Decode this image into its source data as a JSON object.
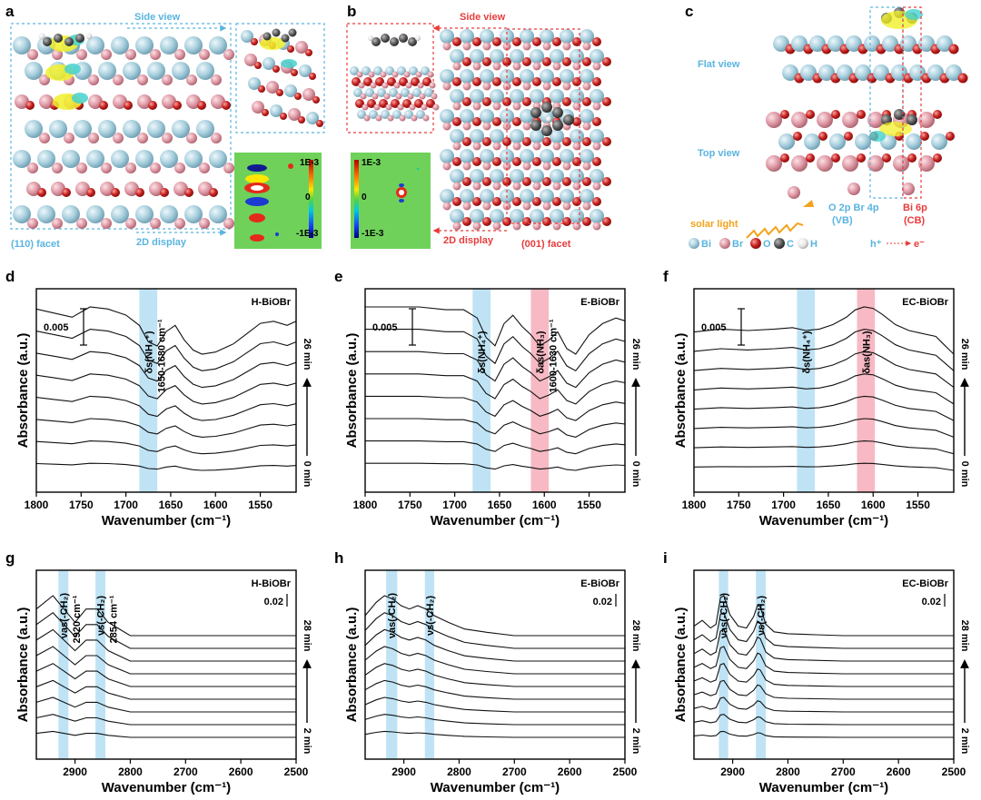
{
  "panel_letters": [
    "a",
    "b",
    "c",
    "d",
    "e",
    "f",
    "g",
    "h",
    "i"
  ],
  "colors": {
    "cyan_text": "#5ab4e0",
    "red_text": "#e83c3c",
    "orange_text": "#f2a31b",
    "blue_band": "#bfe3f5",
    "pink_band": "#f7b9c4",
    "bi_atom": "#a9d0de",
    "br_atom": "#df9aa6",
    "o_atom": "#c8201e",
    "c_atom": "#555555",
    "h_atom": "#f2f2f2"
  },
  "panel_a": {
    "side_view": "Side view",
    "facet": "(110) facet",
    "display": "2D display",
    "cbar_top": "1E-3",
    "cbar_mid": "0",
    "cbar_bot": "-1E-3"
  },
  "panel_b": {
    "side_view": "Side view",
    "facet": "(001) facet",
    "display": "2D display",
    "cbar_top": "1E-3",
    "cbar_mid": "0",
    "cbar_bot": "-1E-3"
  },
  "panel_c": {
    "flat_view": "Flat view",
    "top_view": "Top view",
    "vb": "O 2p Br 4p",
    "vb_sub": "(VB)",
    "cb": "Bi 6p",
    "cb_sub": "(CB)",
    "solar": "solar light",
    "hole": "h⁺",
    "electron": "e⁻",
    "legend": [
      "Bi",
      "Br",
      "O",
      "C",
      "H"
    ]
  },
  "chart_data": [
    {
      "panel": "d",
      "type": "line",
      "sample": "H-BiOBr",
      "xlabel": "Wavenumber (cm⁻¹)",
      "ylabel": "Absorbance (a.u.)",
      "xlim": [
        1800,
        1510
      ],
      "xticks": [
        1800,
        1750,
        1700,
        1650,
        1600,
        1550
      ],
      "scale_bar": "0.005",
      "time_top": "26 min",
      "time_bottom": "0 min",
      "n_spectra": 8,
      "bands": [
        {
          "from": 1685,
          "to": 1665,
          "color": "blue",
          "label": "δs(NH₄⁺)",
          "range_label": "1650-1680 cm⁻¹"
        }
      ],
      "top_spectrum": {
        "x": [
          1800,
          1780,
          1760,
          1740,
          1720,
          1700,
          1685,
          1675,
          1665,
          1655,
          1645,
          1635,
          1625,
          1615,
          1600,
          1580,
          1565,
          1550,
          1535,
          1520,
          1510
        ],
        "y": [
          0.03,
          0.028,
          0.026,
          0.031,
          0.03,
          0.027,
          0.022,
          0.014,
          0.012,
          0.019,
          0.022,
          0.015,
          0.01,
          0.008,
          0.009,
          0.013,
          0.018,
          0.023,
          0.024,
          0.022,
          0.024
        ]
      }
    },
    {
      "panel": "e",
      "type": "line",
      "sample": "E-BiOBr",
      "xlabel": "Wavenumber (cm⁻¹)",
      "ylabel": "Absorbance (a.u.)",
      "xlim": [
        1800,
        1510
      ],
      "xticks": [
        1800,
        1750,
        1700,
        1650,
        1600,
        1550
      ],
      "scale_bar": "0.005",
      "time_top": "26 min",
      "time_bottom": "0 min",
      "n_spectra": 8,
      "bands": [
        {
          "from": 1680,
          "to": 1660,
          "color": "blue",
          "label": "δs(NH₄⁺)",
          "range_label": ""
        },
        {
          "from": 1615,
          "to": 1595,
          "color": "pink",
          "label": "δas(NH₃)",
          "range_label": "1600-1630 cm⁻¹"
        }
      ],
      "top_spectrum": {
        "x": [
          1800,
          1770,
          1740,
          1710,
          1690,
          1675,
          1665,
          1655,
          1645,
          1635,
          1625,
          1615,
          1605,
          1595,
          1585,
          1575,
          1565,
          1550,
          1535,
          1520,
          1510
        ],
        "y": [
          0.03,
          0.03,
          0.03,
          0.029,
          0.029,
          0.026,
          0.019,
          0.016,
          0.024,
          0.027,
          0.023,
          0.02,
          0.016,
          0.018,
          0.021,
          0.015,
          0.013,
          0.02,
          0.024,
          0.026,
          0.025
        ]
      }
    },
    {
      "panel": "f",
      "type": "line",
      "sample": "EC-BiOBr",
      "xlabel": "Wavenumber (cm⁻¹)",
      "ylabel": "Absorbance (a.u.)",
      "xlim": [
        1800,
        1510
      ],
      "xticks": [
        1800,
        1750,
        1700,
        1650,
        1600,
        1550
      ],
      "scale_bar": "0.005",
      "time_top": "26 min",
      "time_bottom": "0 min",
      "n_spectra": 8,
      "bands": [
        {
          "from": 1685,
          "to": 1665,
          "color": "blue",
          "label": "δs(NH₄⁺)",
          "range_label": ""
        },
        {
          "from": 1618,
          "to": 1598,
          "color": "pink",
          "label": "δas(NH₃)",
          "range_label": ""
        }
      ],
      "top_spectrum": {
        "x": [
          1800,
          1770,
          1740,
          1710,
          1690,
          1675,
          1660,
          1645,
          1630,
          1620,
          1610,
          1600,
          1590,
          1575,
          1560,
          1545,
          1530,
          1520,
          1510
        ],
        "y": [
          0.025,
          0.027,
          0.026,
          0.027,
          0.028,
          0.026,
          0.027,
          0.03,
          0.035,
          0.04,
          0.042,
          0.041,
          0.037,
          0.03,
          0.026,
          0.024,
          0.022,
          0.016,
          0.01
        ]
      }
    },
    {
      "panel": "g",
      "type": "line",
      "sample": "H-BiOBr",
      "xlabel": "Wavenumber (cm⁻¹)",
      "ylabel": "Absorbance (a.u.)",
      "xlim": [
        2970,
        2500
      ],
      "xticks": [
        2900,
        2800,
        2700,
        2600,
        2500
      ],
      "scale_bar": "0.02",
      "time_top": "28 min",
      "time_bottom": "2 min",
      "n_spectra": 9,
      "bands": [
        {
          "from": 2930,
          "to": 2912,
          "color": "blue",
          "label": "νas(-CH₂)",
          "range_label": "2920 cm⁻¹"
        },
        {
          "from": 2863,
          "to": 2845,
          "color": "blue",
          "label": "νs(-CH₂)",
          "range_label": "2854 cm⁻¹"
        }
      ],
      "top_spectrum": {
        "x": [
          2970,
          2940,
          2920,
          2900,
          2880,
          2860,
          2840,
          2800,
          2700,
          2600,
          2500
        ],
        "y": [
          0.002,
          0.003,
          0.002,
          0.001,
          0.002,
          0.002,
          0.001,
          0.0,
          0.0,
          0.0,
          0.0
        ]
      }
    },
    {
      "panel": "h",
      "type": "line",
      "sample": "E-BiOBr",
      "xlabel": "Wavenumber (cm⁻¹)",
      "ylabel": "Absorbance (a.u.)",
      "xlim": [
        2970,
        2500
      ],
      "xticks": [
        2900,
        2800,
        2700,
        2600,
        2500
      ],
      "scale_bar": "0.02",
      "time_top": "28 min",
      "time_bottom": "2 min",
      "n_spectra": 9,
      "bands": [
        {
          "from": 2932,
          "to": 2912,
          "color": "blue",
          "label": "νas(-CH₂)",
          "range_label": ""
        },
        {
          "from": 2862,
          "to": 2845,
          "color": "blue",
          "label": "νs(-CH₂)",
          "range_label": ""
        }
      ],
      "top_spectrum": {
        "x": [
          2970,
          2950,
          2935,
          2920,
          2905,
          2890,
          2875,
          2860,
          2845,
          2820,
          2790,
          2750,
          2700,
          2600,
          2500
        ],
        "y": [
          0.006,
          0.01,
          0.012,
          0.011,
          0.009,
          0.008,
          0.009,
          0.008,
          0.006,
          0.004,
          0.002,
          0.001,
          0.0,
          0.0,
          0.0
        ]
      }
    },
    {
      "panel": "i",
      "type": "line",
      "sample": "EC-BiOBr",
      "xlabel": "Wavenumber (cm⁻¹)",
      "ylabel": "Absorbance (a.u.)",
      "xlim": [
        2970,
        2500
      ],
      "xticks": [
        2900,
        2800,
        2700,
        2600,
        2500
      ],
      "scale_bar": "0.02",
      "time_top": "28 min",
      "time_bottom": "2 min",
      "n_spectra": 9,
      "bands": [
        {
          "from": 2925,
          "to": 2908,
          "color": "blue",
          "label": "νas(-CH₂)",
          "range_label": ""
        },
        {
          "from": 2858,
          "to": 2840,
          "color": "blue",
          "label": "νs(-CH₂)",
          "range_label": ""
        }
      ],
      "top_spectrum": {
        "x": [
          2970,
          2955,
          2940,
          2930,
          2922,
          2916,
          2905,
          2890,
          2875,
          2862,
          2855,
          2850,
          2840,
          2825,
          2800,
          2750,
          2700,
          2600,
          2500
        ],
        "y": [
          0.01,
          0.016,
          0.008,
          0.012,
          0.04,
          0.042,
          0.022,
          0.01,
          0.008,
          0.02,
          0.032,
          0.03,
          0.012,
          0.004,
          0.002,
          0.001,
          0.0,
          0.0,
          0.0
        ]
      }
    }
  ]
}
